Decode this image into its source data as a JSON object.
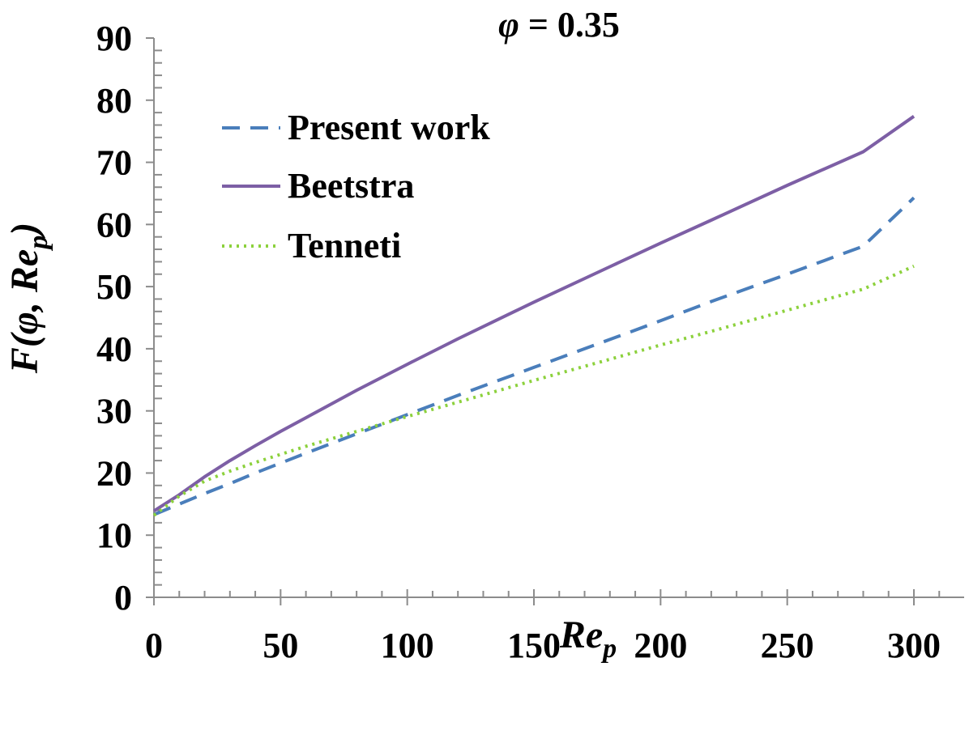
{
  "chart_data": {
    "type": "line",
    "title": {
      "symbol": "φ",
      "rest": " = 0.35"
    },
    "xlabel": {
      "main": "Re",
      "sub": "p"
    },
    "ylabel": {
      "prefix": "F(",
      "phi": "φ",
      "mid": ", ",
      "main": "Re",
      "sub": "p",
      "suffix": ")"
    },
    "xlim": [
      0,
      300
    ],
    "ylim": [
      0,
      90
    ],
    "x_ticks": [
      "0",
      "50",
      "100",
      "150",
      "200",
      "250",
      "300"
    ],
    "y_ticks": [
      "0",
      "10",
      "20",
      "30",
      "40",
      "50",
      "60",
      "70",
      "80",
      "90"
    ],
    "grid": false,
    "legend_position": "top-left",
    "series": [
      {
        "name": "Present work",
        "color": "#4a7ebb",
        "style": "dashed",
        "x": [
          0,
          10,
          20,
          30,
          40,
          50,
          60,
          80,
          100,
          120,
          150,
          180,
          200,
          220,
          250,
          280,
          300
        ],
        "y": [
          13.3,
          15.0,
          16.7,
          18.3,
          20.0,
          21.6,
          23.2,
          26.3,
          29.4,
          32.5,
          37.0,
          41.5,
          44.5,
          47.6,
          52.0,
          56.5,
          64.3
        ]
      },
      {
        "name": "Beetstra",
        "color": "#7d5fa5",
        "style": "solid",
        "x": [
          0,
          10,
          20,
          30,
          40,
          50,
          60,
          80,
          100,
          120,
          150,
          180,
          200,
          220,
          250,
          280,
          300
        ],
        "y": [
          13.9,
          16.5,
          19.4,
          22.0,
          24.4,
          26.7,
          28.9,
          33.3,
          37.5,
          41.6,
          47.5,
          53.2,
          57.0,
          60.7,
          66.3,
          71.7,
          77.4
        ]
      },
      {
        "name": "Tenneti",
        "color": "#8cd13c",
        "style": "dotted",
        "x": [
          0,
          10,
          20,
          30,
          40,
          50,
          60,
          80,
          100,
          120,
          150,
          180,
          200,
          220,
          250,
          280,
          300
        ],
        "y": [
          13.2,
          16.3,
          18.7,
          20.3,
          21.7,
          23.0,
          24.3,
          26.7,
          29.1,
          31.4,
          34.9,
          38.3,
          40.6,
          42.8,
          46.2,
          49.6,
          53.3
        ]
      }
    ]
  }
}
